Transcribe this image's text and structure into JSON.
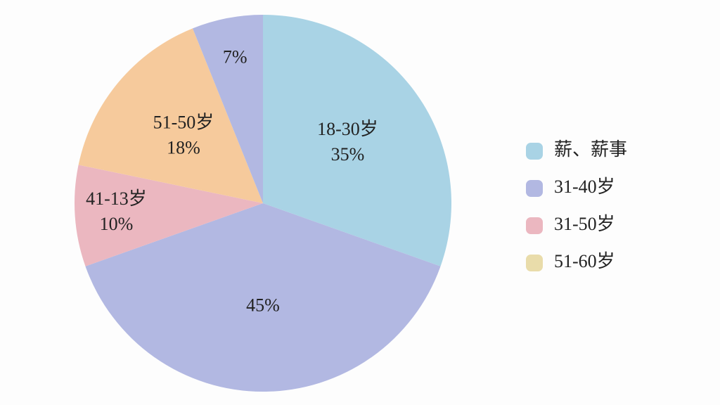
{
  "chart_data": {
    "type": "pie",
    "categories": [
      "18-30岁",
      null,
      "41-13岁",
      "51-50岁",
      null
    ],
    "values": [
      35,
      45,
      10,
      18,
      7
    ],
    "value_labels": [
      "35%",
      "45%",
      "10%",
      "18%",
      "7%"
    ],
    "colors": [
      "#a9d3e5",
      "#b2b8e2",
      "#ebb7c0",
      "#f6ca9c",
      "#b2b8e2"
    ],
    "legend": {
      "position": "right",
      "entries": [
        {
          "name": "薪、薪事",
          "color": "#a9d3e5"
        },
        {
          "name": "31-40岁",
          "color": "#b2b8e2"
        },
        {
          "name": "31-50岁",
          "color": "#ebb7c0"
        },
        {
          "name": "51-60岁",
          "color": "#e9dcaa"
        }
      ]
    }
  }
}
